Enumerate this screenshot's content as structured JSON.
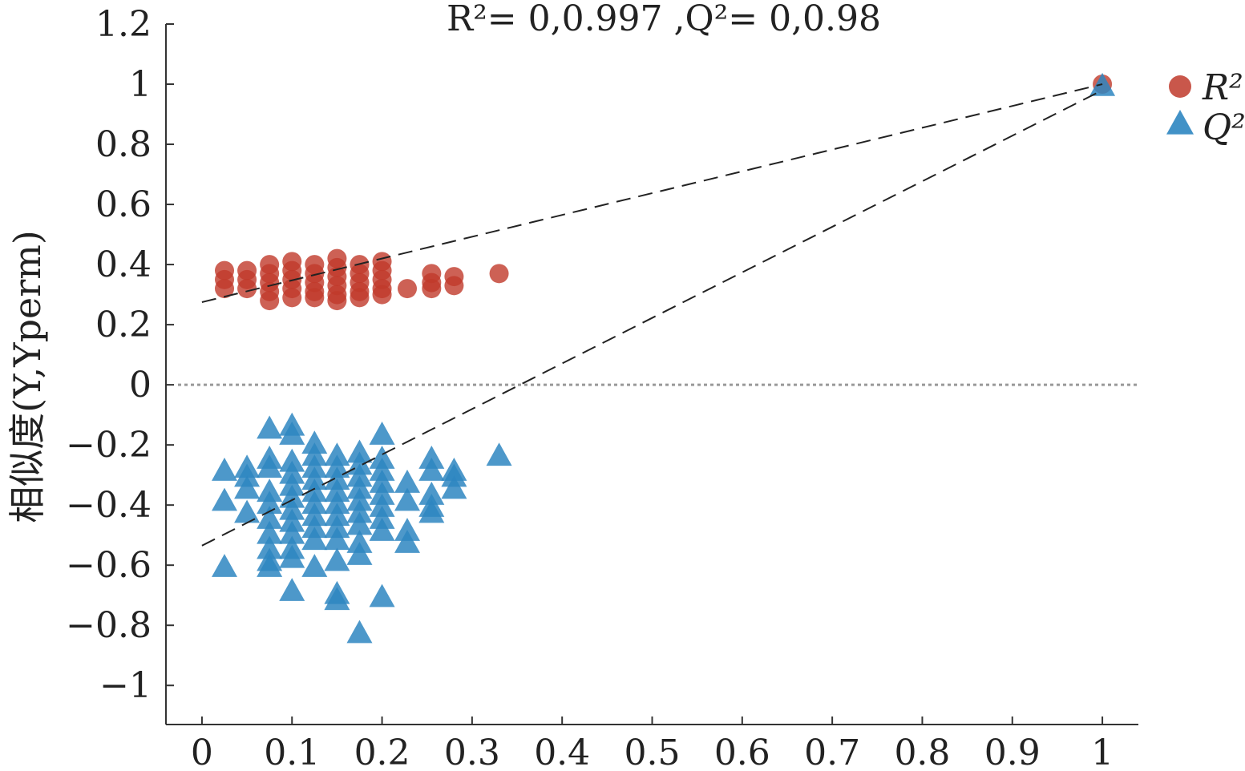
{
  "chart_data": {
    "type": "scatter",
    "title": "R²= 0,0.997 ,Q²= 0,0.98",
    "xlabel": "",
    "ylabel": "相似度(Y,Yperm)",
    "xlim": [
      -0.04,
      1.04
    ],
    "ylim": [
      -1.13,
      1.2
    ],
    "xticks": [
      "0",
      "0.1",
      "0.2",
      "0.3",
      "0.4",
      "0.5",
      "0.6",
      "0.7",
      "0.8",
      "0.9",
      "1"
    ],
    "yticks": [
      "1.2",
      "1",
      "0.8",
      "0.6",
      "0.4",
      "0.2",
      "0",
      "−0.2",
      "−0.4",
      "−0.6",
      "−0.8",
      "−1"
    ],
    "grid": false,
    "legend_position": "top-right",
    "zero_line": {
      "style": "dotted"
    },
    "series": [
      {
        "name": "R²",
        "marker": "circle",
        "color": "#c0392b",
        "points": [
          [
            0.025,
            0.38
          ],
          [
            0.025,
            0.35
          ],
          [
            0.025,
            0.32
          ],
          [
            0.05,
            0.38
          ],
          [
            0.05,
            0.35
          ],
          [
            0.05,
            0.32
          ],
          [
            0.075,
            0.4
          ],
          [
            0.075,
            0.37
          ],
          [
            0.075,
            0.34
          ],
          [
            0.075,
            0.31
          ],
          [
            0.075,
            0.28
          ],
          [
            0.1,
            0.41
          ],
          [
            0.1,
            0.38
          ],
          [
            0.1,
            0.35
          ],
          [
            0.1,
            0.32
          ],
          [
            0.1,
            0.29
          ],
          [
            0.125,
            0.4
          ],
          [
            0.125,
            0.37
          ],
          [
            0.125,
            0.34
          ],
          [
            0.125,
            0.31
          ],
          [
            0.125,
            0.29
          ],
          [
            0.15,
            0.42
          ],
          [
            0.15,
            0.39
          ],
          [
            0.15,
            0.36
          ],
          [
            0.15,
            0.33
          ],
          [
            0.15,
            0.3
          ],
          [
            0.15,
            0.28
          ],
          [
            0.175,
            0.4
          ],
          [
            0.175,
            0.37
          ],
          [
            0.175,
            0.34
          ],
          [
            0.175,
            0.31
          ],
          [
            0.175,
            0.29
          ],
          [
            0.2,
            0.41
          ],
          [
            0.2,
            0.38
          ],
          [
            0.2,
            0.35
          ],
          [
            0.2,
            0.32
          ],
          [
            0.2,
            0.3
          ],
          [
            0.228,
            0.32
          ],
          [
            0.255,
            0.37
          ],
          [
            0.255,
            0.34
          ],
          [
            0.255,
            0.32
          ],
          [
            0.28,
            0.36
          ],
          [
            0.28,
            0.33
          ],
          [
            0.33,
            0.37
          ],
          [
            1.0,
            1.0
          ]
        ],
        "regression": [
          [
            0,
            0.275
          ],
          [
            1,
            1.0
          ]
        ]
      },
      {
        "name": "Q²",
        "marker": "triangle",
        "color": "#2e86c1",
        "points": [
          [
            0.025,
            -0.29
          ],
          [
            0.025,
            -0.39
          ],
          [
            0.025,
            -0.61
          ],
          [
            0.05,
            -0.28
          ],
          [
            0.05,
            -0.31
          ],
          [
            0.05,
            -0.35
          ],
          [
            0.05,
            -0.43
          ],
          [
            0.075,
            -0.15
          ],
          [
            0.075,
            -0.25
          ],
          [
            0.075,
            -0.28
          ],
          [
            0.075,
            -0.36
          ],
          [
            0.075,
            -0.4
          ],
          [
            0.075,
            -0.45
          ],
          [
            0.075,
            -0.5
          ],
          [
            0.075,
            -0.55
          ],
          [
            0.075,
            -0.59
          ],
          [
            0.075,
            -0.61
          ],
          [
            0.1,
            -0.14
          ],
          [
            0.1,
            -0.17
          ],
          [
            0.1,
            -0.26
          ],
          [
            0.1,
            -0.3
          ],
          [
            0.1,
            -0.34
          ],
          [
            0.1,
            -0.38
          ],
          [
            0.1,
            -0.42
          ],
          [
            0.1,
            -0.46
          ],
          [
            0.1,
            -0.5
          ],
          [
            0.1,
            -0.55
          ],
          [
            0.1,
            -0.58
          ],
          [
            0.1,
            -0.69
          ],
          [
            0.125,
            -0.2
          ],
          [
            0.125,
            -0.24
          ],
          [
            0.125,
            -0.28
          ],
          [
            0.125,
            -0.32
          ],
          [
            0.125,
            -0.36
          ],
          [
            0.125,
            -0.4
          ],
          [
            0.125,
            -0.44
          ],
          [
            0.125,
            -0.48
          ],
          [
            0.125,
            -0.52
          ],
          [
            0.125,
            -0.61
          ],
          [
            0.15,
            -0.24
          ],
          [
            0.15,
            -0.28
          ],
          [
            0.15,
            -0.32
          ],
          [
            0.15,
            -0.36
          ],
          [
            0.15,
            -0.4
          ],
          [
            0.15,
            -0.44
          ],
          [
            0.15,
            -0.48
          ],
          [
            0.15,
            -0.52
          ],
          [
            0.15,
            -0.59
          ],
          [
            0.15,
            -0.7
          ],
          [
            0.15,
            -0.72
          ],
          [
            0.175,
            -0.23
          ],
          [
            0.175,
            -0.27
          ],
          [
            0.175,
            -0.31
          ],
          [
            0.175,
            -0.35
          ],
          [
            0.175,
            -0.39
          ],
          [
            0.175,
            -0.43
          ],
          [
            0.175,
            -0.47
          ],
          [
            0.175,
            -0.53
          ],
          [
            0.175,
            -0.57
          ],
          [
            0.175,
            -0.83
          ],
          [
            0.2,
            -0.17
          ],
          [
            0.2,
            -0.25
          ],
          [
            0.2,
            -0.29
          ],
          [
            0.2,
            -0.33
          ],
          [
            0.2,
            -0.37
          ],
          [
            0.2,
            -0.41
          ],
          [
            0.2,
            -0.45
          ],
          [
            0.2,
            -0.49
          ],
          [
            0.2,
            -0.71
          ],
          [
            0.228,
            -0.33
          ],
          [
            0.228,
            -0.39
          ],
          [
            0.228,
            -0.49
          ],
          [
            0.228,
            -0.53
          ],
          [
            0.255,
            -0.25
          ],
          [
            0.255,
            -0.29
          ],
          [
            0.255,
            -0.37
          ],
          [
            0.255,
            -0.41
          ],
          [
            0.255,
            -0.43
          ],
          [
            0.28,
            -0.29
          ],
          [
            0.28,
            -0.31
          ],
          [
            0.28,
            -0.35
          ],
          [
            0.33,
            -0.24
          ],
          [
            1.0,
            0.99
          ]
        ],
        "regression": [
          [
            0,
            -0.535
          ],
          [
            1,
            0.98
          ]
        ]
      }
    ]
  }
}
